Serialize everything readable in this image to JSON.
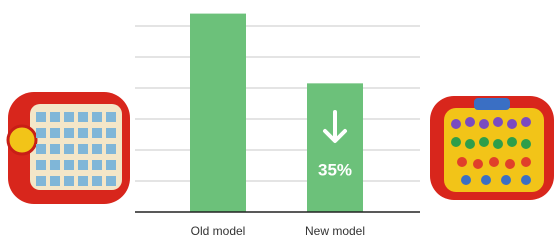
{
  "chart_data": {
    "type": "bar",
    "categories": [
      "Old model",
      "New model"
    ],
    "values": [
      6.4,
      4.15
    ],
    "color": "#6cc17a",
    "ylim": [
      0,
      6.8
    ],
    "yticks": [
      0,
      1,
      2,
      3,
      4,
      5,
      6
    ],
    "grid": true,
    "annotation": "35%"
  }
}
